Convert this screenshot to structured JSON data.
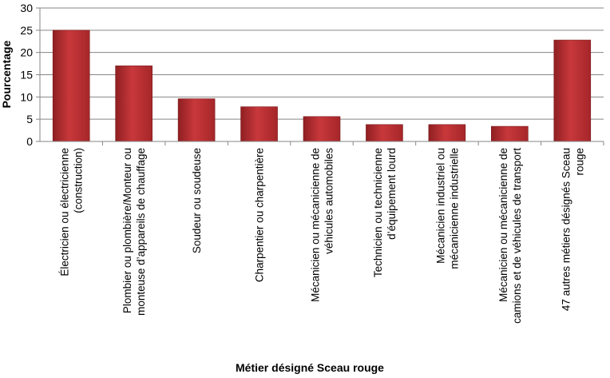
{
  "chart_data": {
    "type": "bar",
    "title": "",
    "xlabel": "Métier désigné Sceau rouge",
    "ylabel": "Pourcentage",
    "ylim": [
      0,
      30
    ],
    "yticks": [
      0,
      5,
      10,
      15,
      20,
      25,
      30
    ],
    "grid": true,
    "legend": "none",
    "bar_color": "#b52a2d",
    "categories": [
      [
        "Électricien ou électricienne",
        "(construction)"
      ],
      [
        "Plombier ou plombière/Monteur ou",
        "monteuse d’appareils de chauffage"
      ],
      [
        "Soudeur ou soudeuse"
      ],
      [
        "Charpentier ou charpentière"
      ],
      [
        "Mécanicien ou mécanicienne de",
        "véhicules automobiles"
      ],
      [
        "Technicien ou technicienne",
        "d’équipement lourd"
      ],
      [
        "Mécanicien industriel ou",
        "mécanicienne industrielle"
      ],
      [
        "Mécanicien ou mécanicienne de",
        "camions et de véhicules de transport"
      ],
      [
        "47 autres métiers désignés Sceau",
        "rouge"
      ]
    ],
    "values": [
      25,
      17,
      9.6,
      7.8,
      5.6,
      3.8,
      3.8,
      3.4,
      22.8
    ]
  }
}
